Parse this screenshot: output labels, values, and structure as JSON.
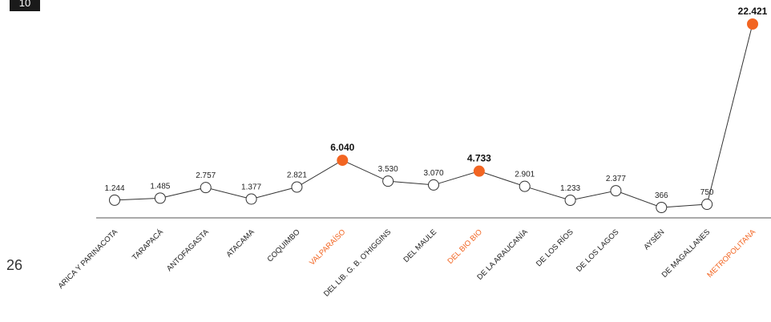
{
  "page_badge": "10",
  "page_number": "26",
  "chart_data": {
    "type": "line",
    "categories": [
      "ARICA Y PARINACOTA",
      "TARAPACÁ",
      "ANTOFAGASTA",
      "ATACAMA",
      "COQUIMBO",
      "VALPARAÍSO",
      "DEL LIB. G. B. O'HIGGINS",
      "DEL MAULE",
      "DEL BIO BIO",
      "DE LA ARAUCANÍA",
      "DE LOS RÍOS",
      "DE LOS LAGOS",
      "AYSÉN",
      "DE MAGALLANES",
      "METROPOLITANA"
    ],
    "values": [
      1244,
      1485,
      2757,
      1377,
      2821,
      6040,
      3530,
      3070,
      4733,
      2901,
      1233,
      2377,
      366,
      750,
      22421
    ],
    "value_labels": [
      "1.244",
      "1.485",
      "2.757",
      "1.377",
      "2.821",
      "6.040",
      "3.530",
      "3.070",
      "4.733",
      "2.901",
      "1.233",
      "2.377",
      "366",
      "750",
      "22.421"
    ],
    "color": "#333333",
    "point_colors": [
      "#ffffff",
      "#ffffff",
      "#ffffff",
      "#ffffff",
      "#ffffff",
      "#f26522",
      "#ffffff",
      "#ffffff",
      "#f26522",
      "#ffffff",
      "#ffffff",
      "#ffffff",
      "#ffffff",
      "#ffffff",
      "#f26522"
    ]
  }
}
